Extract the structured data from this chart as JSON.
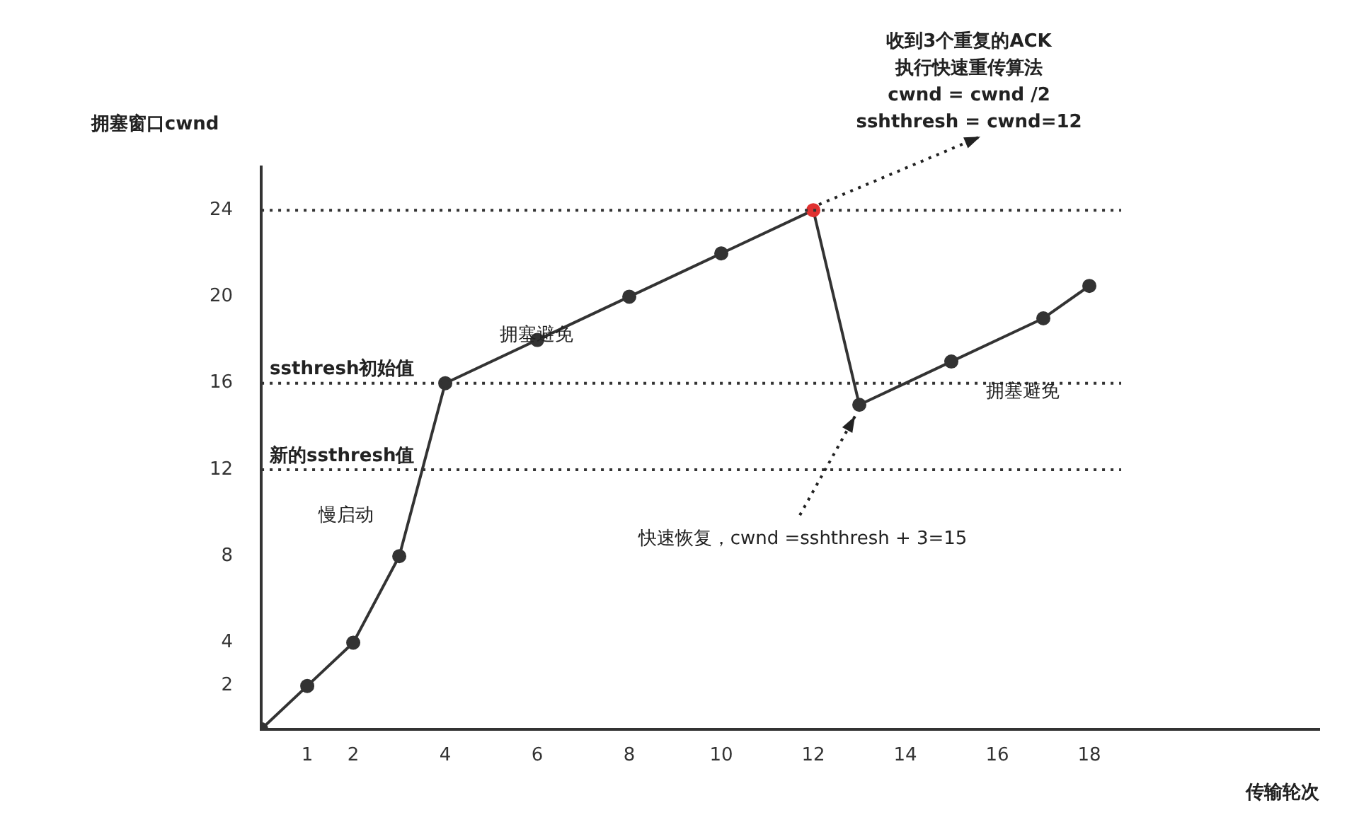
{
  "chart_data": {
    "type": "line",
    "xlabel": "传输轮次",
    "ylabel": "拥塞窗口cwnd",
    "x": [
      0,
      1,
      2,
      3,
      4,
      6,
      8,
      10,
      12,
      13,
      15,
      17,
      18
    ],
    "series": [
      {
        "color": "#333333",
        "values": [
          0,
          2,
          4,
          8,
          16,
          18,
          20,
          22,
          24,
          15,
          17,
          19,
          20.5
        ],
        "colors": [
          "#333333",
          "#333333",
          "#333333",
          "#333333",
          "#333333",
          "#333333",
          "#333333",
          "#333333",
          "#e03030",
          "#333333",
          "#333333",
          "#333333",
          "#333333"
        ]
      }
    ],
    "marker": "circle",
    "xlim": [
      0,
      23
    ],
    "ylim": [
      0,
      26
    ],
    "xticks": [
      1,
      2,
      4,
      6,
      8,
      10,
      12,
      14,
      16,
      18
    ],
    "yticks": [
      2,
      4,
      8,
      12,
      16,
      20,
      24
    ],
    "grid": false,
    "ref_lines": [
      {
        "axis": "y",
        "value": 24,
        "label": null,
        "line_style": "dotted"
      },
      {
        "axis": "y",
        "value": 16,
        "label": "ssthresh初始值",
        "line_style": "dotted"
      },
      {
        "axis": "y",
        "value": 12,
        "label": "新的ssthresh值",
        "line_style": "dotted"
      }
    ],
    "annotations": [
      {
        "text": "收到3个重复的ACK\n执行快速重传算法\ncwnd = cwnd /2\nsshthresh = cwnd=12",
        "x": 12,
        "y": 24
      },
      {
        "text": "快速恢复，cwnd =sshthresh + 3=15",
        "x": 13,
        "y": 15
      },
      "慢启动",
      "拥塞避免",
      "拥塞避免"
    ]
  }
}
